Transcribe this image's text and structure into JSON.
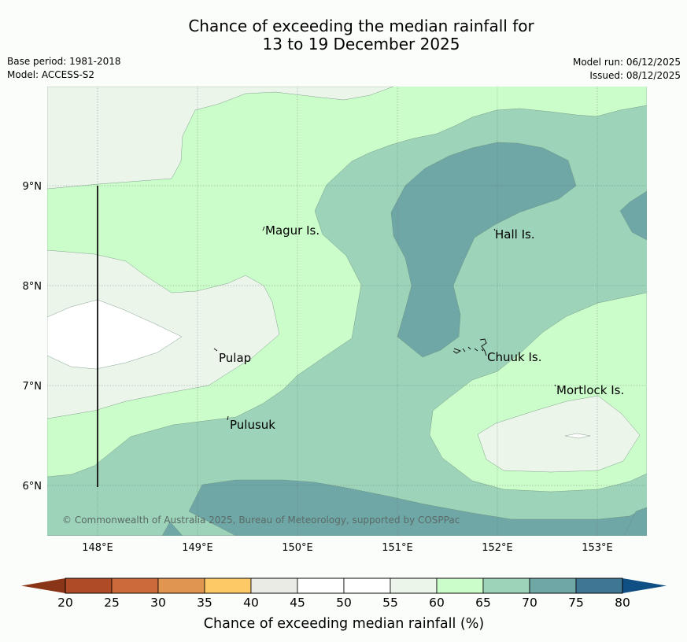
{
  "title": {
    "line1": "Chance of exceeding the median rainfall for",
    "line2": "13 to 19 December 2025"
  },
  "meta": {
    "base_period": "Base period: 1981-2018",
    "model": "Model: ACCESS-S2",
    "model_run": "Model run: 06/12/2025",
    "issued": "Issued: 08/12/2025"
  },
  "map": {
    "x_ticks": [
      "148°E",
      "149°E",
      "150°E",
      "151°E",
      "152°E",
      "153°E"
    ],
    "y_ticks": [
      "9°N",
      "8°N",
      "7°N",
      "6°N"
    ],
    "places": [
      "Magur Is.",
      "Hall Is.",
      "Pulap",
      "Chuuk Is.",
      "Mortlock Is.",
      "Pulusuk"
    ],
    "copyright": "© Commonwealth of Australia 2025, Bureau of Meteorology, supported by COSPPac"
  },
  "colorbar": {
    "label": "Chance of exceeding median rainfall (%)",
    "ticks": [
      "20",
      "25",
      "30",
      "35",
      "40",
      "45",
      "50",
      "55",
      "60",
      "65",
      "70",
      "75",
      "80"
    ],
    "colors": [
      "#b04b27",
      "#cd6a39",
      "#e09650",
      "#fdc866",
      "#ebebe5",
      "#ffffff",
      "#ffffff",
      "#ebf5ea",
      "#cbfdca",
      "#9dd3b9",
      "#6fa7a7",
      "#3e7693"
    ],
    "under_color": "#8b3518",
    "over_color": "#0f4f84"
  },
  "legend_colors": {
    "lt60": "#ebf5ea",
    "lt65": "#cbfdca",
    "lt70": "#9dd3b9",
    "lt75": "#6fa7a7",
    "white": "#ffffff"
  }
}
